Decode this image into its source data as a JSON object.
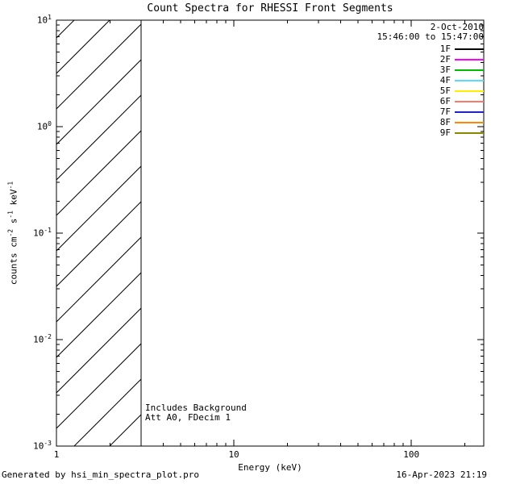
{
  "title": "Count Spectra for RHESSI Front Segments",
  "observation": {
    "date": "2-Oct-2010",
    "time_range": "15:46:00 to 15:47:00"
  },
  "annotations": {
    "line1": "Includes Background",
    "line2": "Att A0, FDecim 1"
  },
  "footer": {
    "generated_by": "Generated by hsi_min_spectra_plot.pro",
    "timestamp": "16-Apr-2023 21:19"
  },
  "chart_data": {
    "type": "line",
    "title": "Count Spectra for RHESSI Front Segments",
    "xlabel": "Energy (keV)",
    "ylabel": "counts cm^-2 s^-1 keV^-1",
    "ylabel_parts": [
      [
        "counts cm",
        "-2"
      ],
      [
        " s",
        "-1"
      ],
      [
        " keV",
        "-1"
      ]
    ],
    "xscale": "log",
    "yscale": "log",
    "xlim": [
      1,
      256
    ],
    "ylim": [
      0.001,
      10
    ],
    "grid": false,
    "xticks": [
      {
        "value": 1,
        "label": "1"
      },
      {
        "value": 10,
        "label": "10"
      },
      {
        "value": 100,
        "label": "100"
      }
    ],
    "yticks": [
      {
        "value": 10,
        "exp": "1"
      },
      {
        "value": 1,
        "exp": "0"
      },
      {
        "value": 0.1,
        "exp": "-1"
      },
      {
        "value": 0.01,
        "exp": "-2"
      },
      {
        "value": 0.001,
        "exp": "-3"
      }
    ],
    "hatched_region": {
      "x_start": 1,
      "x_end": 3
    },
    "legend_position": "upper right",
    "series": [
      {
        "name": "1F",
        "color": "#000000",
        "values": []
      },
      {
        "name": "2F",
        "color": "#ff00ff",
        "values": []
      },
      {
        "name": "3F",
        "color": "#00bb00",
        "values": []
      },
      {
        "name": "4F",
        "color": "#55ddff",
        "values": []
      },
      {
        "name": "5F",
        "color": "#ffee00",
        "values": []
      },
      {
        "name": "6F",
        "color": "#ff7766",
        "values": []
      },
      {
        "name": "7F",
        "color": "#2222cc",
        "values": []
      },
      {
        "name": "8F",
        "color": "#ff8800",
        "values": []
      },
      {
        "name": "9F",
        "color": "#888800",
        "values": []
      }
    ]
  }
}
